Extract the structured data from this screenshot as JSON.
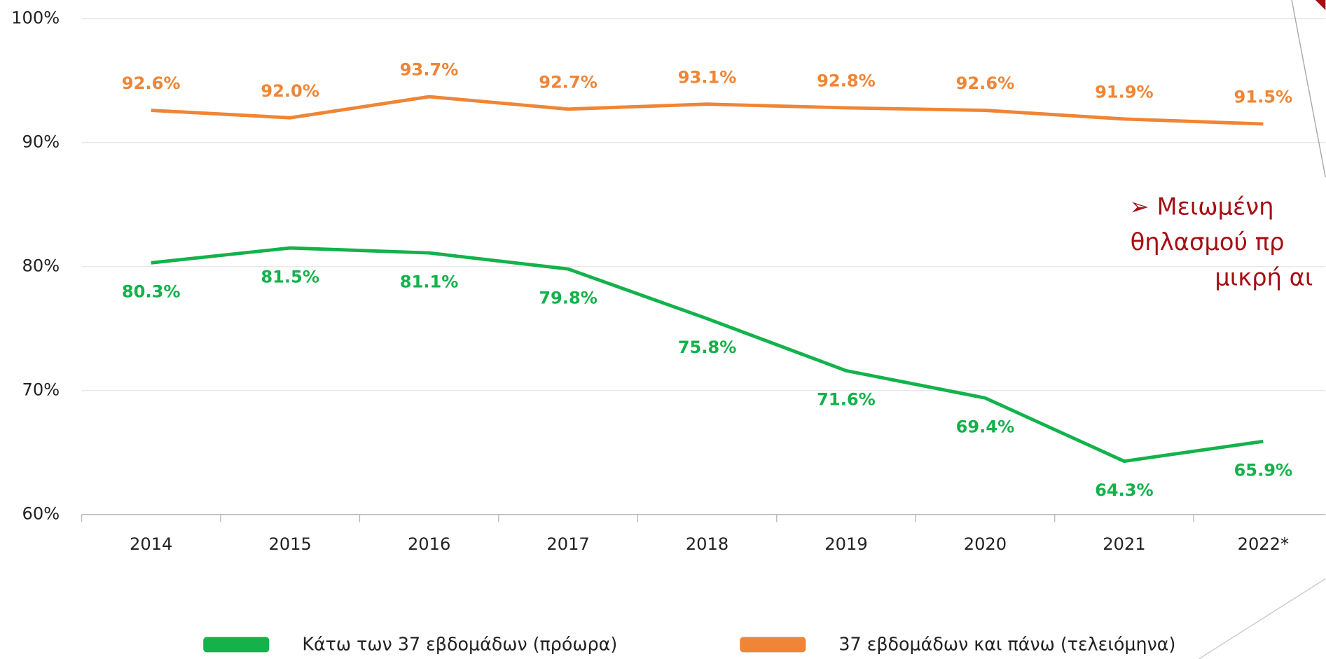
{
  "chart_data": {
    "type": "line",
    "categories": [
      "2014",
      "2015",
      "2016",
      "2017",
      "2018",
      "2019",
      "2020",
      "2021",
      "2022*"
    ],
    "series": [
      {
        "name": "Κάτω των 37 εβδομάδων (πρόωρα)",
        "color": "#13b24b",
        "values": [
          80.3,
          81.5,
          81.1,
          79.8,
          75.8,
          71.6,
          69.4,
          64.3,
          65.9
        ],
        "value_labels": [
          "80.3%",
          "81.5%",
          "81.1%",
          "79.8%",
          "75.8%",
          "71.6%",
          "69.4%",
          "64.3%",
          "65.9%"
        ]
      },
      {
        "name": "37 εβδομάδων και πάνω (τελειόμηνα)",
        "color": "#ef8535",
        "values": [
          92.6,
          92.0,
          93.7,
          92.7,
          93.1,
          92.8,
          92.6,
          91.9,
          91.5
        ],
        "value_labels": [
          "92.6%",
          "92.0%",
          "93.7%",
          "92.7%",
          "93.1%",
          "92.8%",
          "92.6%",
          "91.9%",
          "91.5%"
        ]
      }
    ],
    "ylim": [
      60,
      100
    ],
    "yticks": [
      {
        "value": 60,
        "label": "60%"
      },
      {
        "value": 70,
        "label": "70%"
      },
      {
        "value": 80,
        "label": "80%"
      },
      {
        "value": 90,
        "label": "90%"
      },
      {
        "value": 100,
        "label": "100%"
      }
    ],
    "grid": true,
    "legend": "bottom",
    "annotation": [
      "➢ Μειωμένη",
      "θηλασμού πρ",
      "μικρή αι"
    ]
  }
}
